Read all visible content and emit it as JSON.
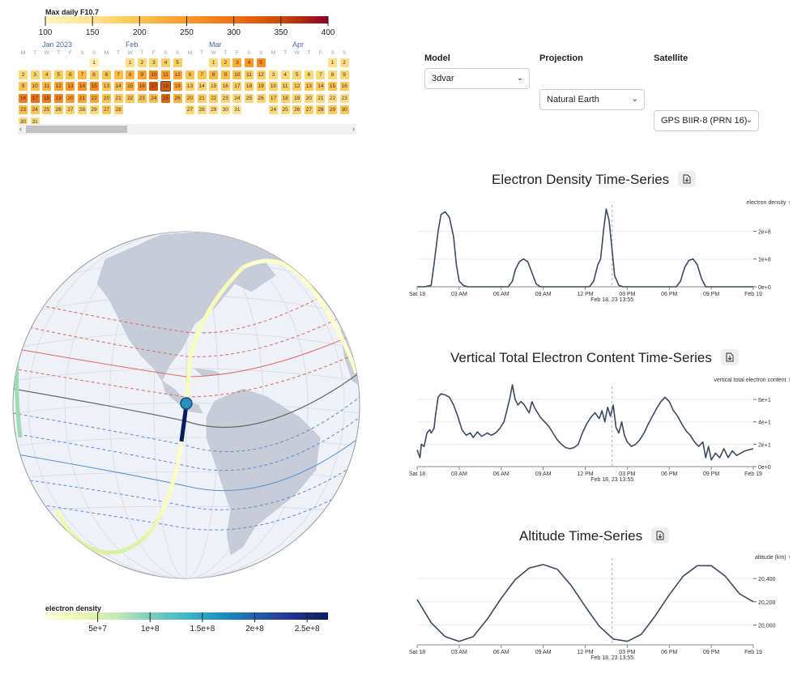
{
  "f107_legend": {
    "title": "Max daily F10.7",
    "ticks": [
      "100",
      "150",
      "200",
      "250",
      "300",
      "350",
      "400"
    ],
    "colors": [
      "#fff7bc",
      "#fee391",
      "#fec44f",
      "#fe9929",
      "#ec7014",
      "#cc4c02",
      "#8b0026"
    ]
  },
  "calendar": {
    "weekday_letters": [
      "M",
      "T",
      "W",
      "T",
      "F",
      "S",
      "S"
    ],
    "months": [
      {
        "label": "Jan 2023",
        "first_weekday": 6,
        "days": 31,
        "values": [
          120,
          170,
          175,
          185,
          190,
          200,
          210,
          190,
          200,
          205,
          215,
          240,
          250,
          260,
          270,
          280,
          300,
          290,
          270,
          245,
          240,
          230,
          210,
          200,
          190,
          185,
          180,
          175,
          170,
          165,
          160
        ]
      },
      {
        "label": "Feb",
        "first_weekday": 2,
        "days": 28,
        "values": [
          160,
          170,
          175,
          180,
          185,
          200,
          210,
          220,
          240,
          270,
          250,
          230,
          200,
          210,
          230,
          260,
          340,
          330,
          240,
          200,
          190,
          195,
          200,
          210,
          320,
          220,
          195,
          180
        ]
      },
      {
        "label": "Mar",
        "first_weekday": 2,
        "days": 31,
        "values": [
          165,
          190,
          230,
          250,
          265,
          200,
          200,
          215,
          210,
          205,
          190,
          185,
          180,
          175,
          175,
          180,
          185,
          190,
          195,
          190,
          185,
          180,
          175,
          170,
          170,
          175,
          170,
          165,
          160,
          155,
          150
        ]
      },
      {
        "label": "Apr",
        "first_weekday": 5,
        "days": 30,
        "values": [
          155,
          160,
          165,
          170,
          175,
          170,
          165,
          170,
          175,
          180,
          180,
          185,
          190,
          195,
          200,
          190,
          185,
          180,
          175,
          170,
          165,
          160,
          160,
          165,
          170,
          175,
          180,
          185,
          190,
          195
        ]
      }
    ],
    "selected": {
      "month": 1,
      "day": 18
    },
    "scroll_left": "‹",
    "scroll_right": "›"
  },
  "controls": {
    "model": {
      "label": "Model",
      "value": "3dvar"
    },
    "projection": {
      "label": "Projection",
      "value": "Natural Earth"
    },
    "satellite": {
      "label": "Satellite",
      "value": "GPS BIIR-8 (PRN 16)"
    }
  },
  "density_legend": {
    "title": "electron density",
    "ticks": [
      "5e+7",
      "1e+8",
      "1.5e+8",
      "2e+8",
      "2.5e+8"
    ],
    "tick_values": [
      50000000,
      100000000,
      150000000,
      200000000,
      250000000
    ],
    "domain": [
      0,
      270000000
    ],
    "colors": [
      "#ffffd9",
      "#edf8b1",
      "#c7e9b4",
      "#7fcdbb",
      "#41b6c4",
      "#1d91c0",
      "#225ea8",
      "#253494",
      "#081d58"
    ]
  },
  "globe": {
    "ocean_color": "#eef2f8",
    "land_color": "#c6cdd8",
    "contour_red": "#e06666",
    "contour_blue": "#5b8fd6",
    "contour_black": "#666666"
  },
  "chart_data": [
    {
      "type": "line",
      "title": "Electron Density Time-Series",
      "ylabel": "electron density ↑",
      "x_ticks": [
        "Sat 18",
        "03 AM",
        "06 AM",
        "09 AM",
        "12 PM",
        "03 PM",
        "06 PM",
        "09 PM",
        "Feb 19"
      ],
      "y_ticks": [
        "0e+0",
        "1e+8",
        "2e+8"
      ],
      "y_tick_values": [
        0,
        100000000,
        200000000
      ],
      "ylim": [
        0,
        280000000
      ],
      "xlim_hours": [
        0,
        24
      ],
      "cursor_label": "Feb 18, 23 13:55",
      "cursor_hour": 13.92,
      "points": [
        [
          0,
          0
        ],
        [
          0.5,
          0
        ],
        [
          1,
          5000000
        ],
        [
          1.2,
          80000000
        ],
        [
          1.5,
          200000000
        ],
        [
          1.7,
          260000000
        ],
        [
          2,
          270000000
        ],
        [
          2.3,
          250000000
        ],
        [
          2.6,
          180000000
        ],
        [
          2.8,
          80000000
        ],
        [
          3,
          20000000
        ],
        [
          3.3,
          5000000
        ],
        [
          3.6,
          0
        ],
        [
          3.9,
          0
        ],
        [
          4,
          0
        ],
        [
          6.5,
          0
        ],
        [
          6.8,
          20000000
        ],
        [
          7,
          60000000
        ],
        [
          7.3,
          90000000
        ],
        [
          7.6,
          100000000
        ],
        [
          7.9,
          90000000
        ],
        [
          8.2,
          50000000
        ],
        [
          8.5,
          10000000
        ],
        [
          8.8,
          0
        ],
        [
          12.3,
          0
        ],
        [
          12.6,
          20000000
        ],
        [
          12.9,
          80000000
        ],
        [
          13.1,
          100000000
        ],
        [
          13.3,
          200000000
        ],
        [
          13.5,
          280000000
        ],
        [
          13.7,
          240000000
        ],
        [
          13.9,
          140000000
        ],
        [
          14.1,
          40000000
        ],
        [
          14.4,
          5000000
        ],
        [
          14.7,
          0
        ],
        [
          18.5,
          0
        ],
        [
          18.8,
          20000000
        ],
        [
          19.1,
          70000000
        ],
        [
          19.4,
          95000000
        ],
        [
          19.7,
          100000000
        ],
        [
          20,
          80000000
        ],
        [
          20.3,
          30000000
        ],
        [
          20.6,
          0
        ],
        [
          24,
          0
        ]
      ]
    },
    {
      "type": "line",
      "title": "Vertical Total Electron Content Time-Series",
      "ylabel": "vertical total electron content ↑",
      "x_ticks": [
        "Sat 18",
        "03 AM",
        "06 AM",
        "09 AM",
        "12 PM",
        "03 PM",
        "06 PM",
        "09 PM",
        "Feb 19"
      ],
      "y_ticks": [
        "0e+0",
        "2e+1",
        "4e+1",
        "6e+1"
      ],
      "y_tick_values": [
        0,
        20,
        40,
        60
      ],
      "ylim": [
        0,
        68
      ],
      "xlim_hours": [
        0,
        24
      ],
      "cursor_label": "Feb 18, 23 13:55",
      "cursor_hour": 13.92,
      "points": [
        [
          0,
          15
        ],
        [
          0.2,
          8
        ],
        [
          0.3,
          20
        ],
        [
          0.5,
          18
        ],
        [
          0.7,
          30
        ],
        [
          0.9,
          33
        ],
        [
          1,
          30
        ],
        [
          1.2,
          34
        ],
        [
          1.3,
          45
        ],
        [
          1.5,
          62
        ],
        [
          1.7,
          65
        ],
        [
          2,
          64
        ],
        [
          2.3,
          62
        ],
        [
          2.6,
          55
        ],
        [
          2.9,
          45
        ],
        [
          3.2,
          33
        ],
        [
          3.5,
          28
        ],
        [
          3.8,
          30
        ],
        [
          4,
          26
        ],
        [
          4.3,
          31
        ],
        [
          4.6,
          27
        ],
        [
          5,
          30
        ],
        [
          5.3,
          28
        ],
        [
          5.6,
          30
        ],
        [
          5.9,
          34
        ],
        [
          6.2,
          40
        ],
        [
          6.4,
          50
        ],
        [
          6.6,
          60
        ],
        [
          6.8,
          73
        ],
        [
          7,
          60
        ],
        [
          7.2,
          55
        ],
        [
          7.4,
          58
        ],
        [
          7.6,
          56
        ],
        [
          7.8,
          52
        ],
        [
          8,
          48
        ],
        [
          8.2,
          58
        ],
        [
          8.4,
          52
        ],
        [
          8.6,
          48
        ],
        [
          8.8,
          44
        ],
        [
          9.1,
          40
        ],
        [
          9.4,
          36
        ],
        [
          9.7,
          30
        ],
        [
          10,
          24
        ],
        [
          10.3,
          20
        ],
        [
          10.6,
          17
        ],
        [
          10.9,
          16
        ],
        [
          11.2,
          17
        ],
        [
          11.5,
          20
        ],
        [
          11.8,
          30
        ],
        [
          12.1,
          38
        ],
        [
          12.4,
          44
        ],
        [
          12.7,
          48
        ],
        [
          13,
          43
        ],
        [
          13.2,
          50
        ],
        [
          13.4,
          40
        ],
        [
          13.6,
          53
        ],
        [
          13.8,
          45
        ],
        [
          14,
          55
        ],
        [
          14.2,
          35
        ],
        [
          14.4,
          30
        ],
        [
          14.6,
          40
        ],
        [
          14.8,
          28
        ],
        [
          15,
          22
        ],
        [
          15.3,
          18
        ],
        [
          15.6,
          20
        ],
        [
          15.9,
          24
        ],
        [
          16.2,
          30
        ],
        [
          16.5,
          38
        ],
        [
          16.8,
          45
        ],
        [
          17.1,
          52
        ],
        [
          17.4,
          58
        ],
        [
          17.7,
          62
        ],
        [
          18,
          58
        ],
        [
          18.3,
          50
        ],
        [
          18.6,
          45
        ],
        [
          18.9,
          38
        ],
        [
          19.2,
          32
        ],
        [
          19.5,
          28
        ],
        [
          19.8,
          22
        ],
        [
          20.1,
          18
        ],
        [
          20.4,
          22
        ],
        [
          20.6,
          8
        ],
        [
          20.8,
          18
        ],
        [
          21,
          6
        ],
        [
          21.3,
          12
        ],
        [
          21.6,
          8
        ],
        [
          21.9,
          16
        ],
        [
          22.2,
          8
        ],
        [
          22.5,
          14
        ],
        [
          22.8,
          10
        ],
        [
          23.1,
          12
        ],
        [
          23.4,
          14
        ],
        [
          24,
          16
        ]
      ]
    },
    {
      "type": "line",
      "title": "Altitude Time-Series",
      "ylabel": "altitude (km) ↑",
      "x_ticks": [
        "Sat 18",
        "03 AM",
        "06 AM",
        "09 AM",
        "12 PM",
        "03 PM",
        "06 PM",
        "09 PM",
        "Feb 19"
      ],
      "y_ticks": [
        "20,000",
        "20,200",
        "20,400"
      ],
      "y_tick_values": [
        20000,
        20200,
        20400
      ],
      "ylim": [
        19830,
        20540
      ],
      "xlim_hours": [
        0,
        24
      ],
      "cursor_label": "Feb 18, 23 13:55",
      "cursor_hour": 13.92,
      "points": [
        [
          0,
          20220
        ],
        [
          1,
          20020
        ],
        [
          2,
          19900
        ],
        [
          3,
          19860
        ],
        [
          4,
          19900
        ],
        [
          5,
          20050
        ],
        [
          6,
          20230
        ],
        [
          7,
          20390
        ],
        [
          8,
          20490
        ],
        [
          9,
          20520
        ],
        [
          10,
          20480
        ],
        [
          11,
          20340
        ],
        [
          12,
          20160
        ],
        [
          13,
          19990
        ],
        [
          14,
          19880
        ],
        [
          15,
          19860
        ],
        [
          16,
          19920
        ],
        [
          17,
          20080
        ],
        [
          18,
          20260
        ],
        [
          19,
          20420
        ],
        [
          20,
          20510
        ],
        [
          21,
          20510
        ],
        [
          22,
          20420
        ],
        [
          23,
          20270
        ],
        [
          24,
          20200
        ]
      ]
    }
  ]
}
